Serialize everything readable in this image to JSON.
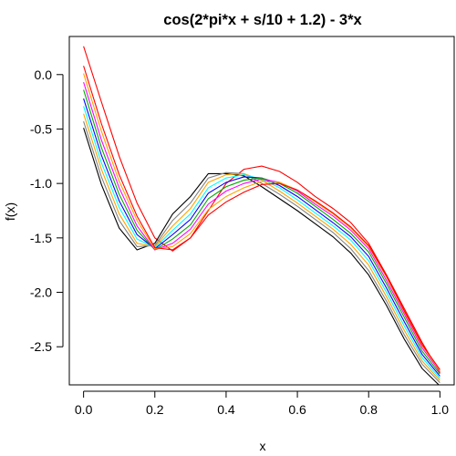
{
  "chart_data": {
    "type": "line",
    "title": "cos(2*pi*x + s/10 + 1.2) - 3*x",
    "xlabel": "x",
    "ylabel": "f(x)",
    "xlim": [
      -0.04,
      1.04
    ],
    "ylim": [
      -2.85,
      0.35
    ],
    "xticks": [
      0.0,
      0.2,
      0.4,
      0.6,
      0.8,
      1.0
    ],
    "xtick_labels": [
      "0.0",
      "0.2",
      "0.4",
      "0.6",
      "0.8",
      "1.0"
    ],
    "yticks": [
      0.0,
      -0.5,
      -1.0,
      -1.5,
      -2.0,
      -2.5
    ],
    "ytick_labels": [
      "0.0",
      "-0.5",
      "-1.0",
      "-1.5",
      "-2.0",
      "-2.5"
    ],
    "grid": false,
    "x": [
      0.0,
      0.05,
      0.1,
      0.15,
      0.2,
      0.25,
      0.3,
      0.35,
      0.4,
      0.45,
      0.5,
      0.55,
      0.6,
      0.65,
      0.7,
      0.75,
      0.8,
      0.85,
      0.9,
      0.95,
      1.0
    ],
    "series": [
      {
        "color": "#ff0000",
        "values": [
          0.26,
          -0.25,
          -0.75,
          -1.18,
          -1.5,
          -1.62,
          -1.5,
          -1.25,
          -1.0,
          -0.87,
          -0.84,
          -0.89,
          -0.99,
          -1.12,
          -1.23,
          -1.36,
          -1.55,
          -1.84,
          -2.15,
          -2.46,
          -2.74
        ]
      },
      {
        "color": "#000000",
        "values": [
          -0.49,
          -1.01,
          -1.41,
          -1.61,
          -1.55,
          -1.28,
          -1.12,
          -0.91,
          -0.91,
          -0.93,
          -1.03,
          -1.14,
          -1.25,
          -1.37,
          -1.49,
          -1.64,
          -1.84,
          -2.12,
          -2.43,
          -2.7,
          -2.86
        ]
      },
      {
        "color": "#808080",
        "values": [
          -0.43,
          -0.94,
          -1.34,
          -1.58,
          -1.57,
          -1.34,
          -1.18,
          -0.95,
          -0.9,
          -0.91,
          -1.0,
          -1.1,
          -1.21,
          -1.33,
          -1.45,
          -1.6,
          -1.8,
          -2.08,
          -2.39,
          -2.66,
          -2.83
        ]
      },
      {
        "color": "#ffa500",
        "values": [
          -0.36,
          -0.87,
          -1.28,
          -1.55,
          -1.58,
          -1.39,
          -1.23,
          -0.99,
          -0.92,
          -0.91,
          -0.97,
          -1.07,
          -1.18,
          -1.3,
          -1.42,
          -1.56,
          -1.75,
          -2.04,
          -2.35,
          -2.63,
          -2.81
        ]
      },
      {
        "color": "#00ffff",
        "values": [
          -0.29,
          -0.81,
          -1.22,
          -1.51,
          -1.59,
          -1.43,
          -1.28,
          -1.04,
          -0.95,
          -0.92,
          -0.96,
          -1.04,
          -1.15,
          -1.27,
          -1.39,
          -1.52,
          -1.71,
          -2.0,
          -2.31,
          -2.6,
          -2.79
        ]
      },
      {
        "color": "#0000ff",
        "values": [
          -0.22,
          -0.74,
          -1.16,
          -1.47,
          -1.6,
          -1.47,
          -1.33,
          -1.09,
          -0.99,
          -0.94,
          -0.95,
          -1.02,
          -1.12,
          -1.24,
          -1.36,
          -1.49,
          -1.67,
          -1.96,
          -2.27,
          -2.57,
          -2.77
        ]
      },
      {
        "color": "#00aa00",
        "values": [
          -0.14,
          -0.67,
          -1.1,
          -1.43,
          -1.61,
          -1.51,
          -1.38,
          -1.14,
          -1.03,
          -0.97,
          -0.95,
          -1.0,
          -1.09,
          -1.21,
          -1.33,
          -1.46,
          -1.63,
          -1.92,
          -2.23,
          -2.54,
          -2.75
        ]
      },
      {
        "color": "#ff00ff",
        "values": [
          -0.07,
          -0.6,
          -1.04,
          -1.39,
          -1.61,
          -1.55,
          -1.42,
          -1.19,
          -1.07,
          -1.0,
          -0.96,
          -0.99,
          -1.07,
          -1.19,
          -1.3,
          -1.43,
          -1.6,
          -1.89,
          -2.2,
          -2.51,
          -2.73
        ]
      },
      {
        "color": "#ffa500",
        "values": [
          0.01,
          -0.52,
          -0.98,
          -1.34,
          -1.6,
          -1.58,
          -1.46,
          -1.24,
          -1.12,
          -1.04,
          -0.98,
          -0.99,
          -1.06,
          -1.17,
          -1.28,
          -1.41,
          -1.58,
          -1.86,
          -2.18,
          -2.49,
          -2.72
        ]
      },
      {
        "color": "#ff0000",
        "values": [
          0.08,
          -0.45,
          -0.92,
          -1.3,
          -1.59,
          -1.61,
          -1.5,
          -1.29,
          -1.17,
          -1.08,
          -1.01,
          -1.0,
          -1.06,
          -1.16,
          -1.27,
          -1.4,
          -1.57,
          -1.85,
          -2.17,
          -2.48,
          -2.71
        ]
      }
    ]
  }
}
